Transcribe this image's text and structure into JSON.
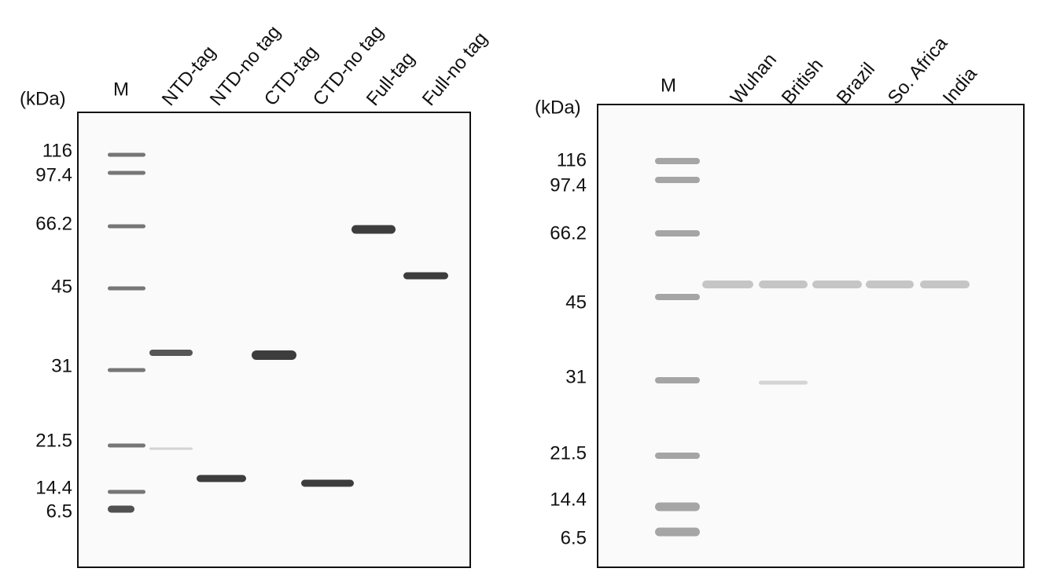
{
  "gels": [
    {
      "unit": "(kDa)",
      "marker": "M",
      "lanes": [
        "NTD-tag",
        "NTD-no tag",
        "CTD-tag",
        "CTD-no tag",
        "Full-tag",
        "Full-no tag"
      ],
      "marker_sizes": [
        "116",
        "97.4",
        "66.2",
        "45",
        "31",
        "21.5",
        "14.4",
        "6.5"
      ]
    },
    {
      "unit": "(kDa)",
      "marker": "M",
      "lanes": [
        "Wuhan",
        "British",
        "Brazil",
        "So. Africa",
        "India"
      ],
      "marker_sizes": [
        "116",
        "97.4",
        "66.2",
        "45",
        "31",
        "21.5",
        "14.4",
        "6.5"
      ]
    }
  ]
}
